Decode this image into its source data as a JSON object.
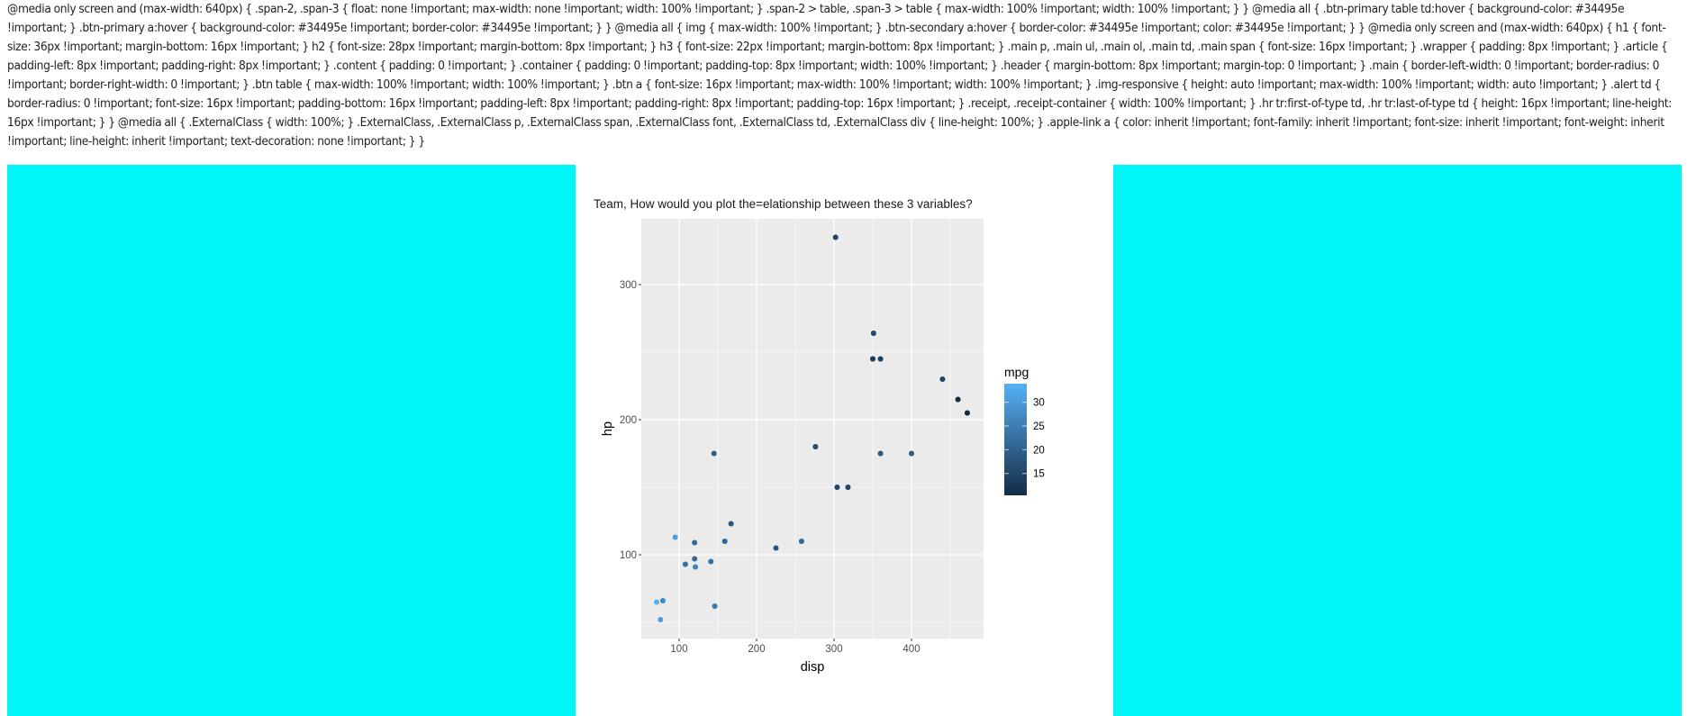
{
  "page": {
    "css_text": "@media only screen and (max-width: 640px) { .span-2, .span-3 { float: none !important; max-width: none !important; width: 100% !important; } .span-2 > table, .span-3 > table { max-width: 100% !important; width: 100% !important; } } @media all { .btn-primary table td:hover { background-color: #34495e !important; } .btn-primary a:hover { background-color: #34495e !important; border-color: #34495e !important; } } @media all { img { max-width: 100% !important; } .btn-secondary a:hover { border-color: #34495e !important; color: #34495e !important; } } @media only screen and (max-width: 640px) { h1 { font-size: 36px !important; margin-bottom: 16px !important; } h2 { font-size: 28px !important; margin-bottom: 8px !important; } h3 { font-size: 22px !important; margin-bottom: 8px !important; } .main p, .main ul, .main ol, .main td, .main span { font-size: 16px !important; } .wrapper { padding: 8px !important; } .article { padding-left: 8px !important; padding-right: 8px !important; } .content { padding: 0 !important; } .container { padding: 0 !important; padding-top: 8px !important; width: 100% !important; } .header { margin-bottom: 8px !important; margin-top: 0 !important; } .main { border-left-width: 0 !important; border-radius: 0 !important; border-right-width: 0 !important; } .btn table { max-width: 100% !important; width: 100% !important; } .btn a { font-size: 16px !important; max-width: 100% !important; width: 100% !important; } .img-responsive { height: auto !important; max-width: 100% !important; width: auto !important; } .alert td { border-radius: 0 !important; font-size: 16px !important; padding-bottom: 16px !important; padding-left: 8px !important; padding-right: 8px !important; padding-top: 16px !important; } .receipt, .receipt-container { width: 100% !important; } .hr tr:first-of-type td, .hr tr:last-of-type td { height: 16px !important; line-height: 16px !important; } } @media all { .ExternalClass { width: 100%; } .ExternalClass, .ExternalClass p, .ExternalClass span, .ExternalClass font, .ExternalClass td, .ExternalClass div { line-height: 100%; } .apple-link a { color: inherit !important; font-family: inherit !important; font-size: inherit !important; font-weight: inherit !important; line-height: inherit !important; text-decoration: none !important; } }",
    "colors": {
      "side_panel": "#00f7f7",
      "plot_bg": "#ebebeb",
      "grid": "#ffffff",
      "gradient_low": "#132b43",
      "gradient_high": "#56b1f7"
    }
  },
  "chart_data": {
    "type": "scatter",
    "title": "Team, How would you plot the=elationship between these 3 variables?",
    "xlabel": "disp",
    "ylabel": "hp",
    "color_label": "mpg",
    "xlim": [
      55,
      497
    ],
    "ylim": [
      38,
      352
    ],
    "x_ticks": [
      100,
      200,
      300,
      400
    ],
    "y_ticks": [
      100,
      200,
      300
    ],
    "color_ticks": [
      15,
      20,
      25,
      30
    ],
    "color_range": [
      10.4,
      33.9
    ],
    "grid": true,
    "legend_position": "right",
    "points": [
      {
        "disp": 95,
        "hp": 113,
        "mpg": 30.4
      },
      {
        "disp": 120,
        "hp": 109,
        "mpg": 21.4
      },
      {
        "disp": 159,
        "hp": 110,
        "mpg": 21.0
      },
      {
        "disp": 167,
        "hp": 123,
        "mpg": 18.5
      },
      {
        "disp": 225,
        "hp": 105,
        "mpg": 18.1
      },
      {
        "disp": 258,
        "hp": 110,
        "mpg": 21.4
      },
      {
        "disp": 120,
        "hp": 97,
        "mpg": 21.5
      },
      {
        "disp": 108,
        "hp": 93,
        "mpg": 22.8
      },
      {
        "disp": 121,
        "hp": 91,
        "mpg": 26.0
      },
      {
        "disp": 141,
        "hp": 95,
        "mpg": 22.8
      },
      {
        "disp": 71,
        "hp": 65,
        "mpg": 33.9
      },
      {
        "disp": 79,
        "hp": 66,
        "mpg": 27.3
      },
      {
        "disp": 146,
        "hp": 62,
        "mpg": 24.4
      },
      {
        "disp": 76,
        "hp": 52,
        "mpg": 30.4
      },
      {
        "disp": 145,
        "hp": 175,
        "mpg": 19.7
      },
      {
        "disp": 276,
        "hp": 180,
        "mpg": 16.4
      },
      {
        "disp": 304,
        "hp": 150,
        "mpg": 15.2
      },
      {
        "disp": 318,
        "hp": 150,
        "mpg": 15.5
      },
      {
        "disp": 360,
        "hp": 175,
        "mpg": 18.7
      },
      {
        "disp": 400,
        "hp": 175,
        "mpg": 19.2
      },
      {
        "disp": 302,
        "hp": 335,
        "mpg": 15.0
      },
      {
        "disp": 351,
        "hp": 264,
        "mpg": 15.8
      },
      {
        "disp": 350,
        "hp": 245,
        "mpg": 13.3
      },
      {
        "disp": 360,
        "hp": 245,
        "mpg": 14.3
      },
      {
        "disp": 440,
        "hp": 230,
        "mpg": 14.7
      },
      {
        "disp": 460,
        "hp": 215,
        "mpg": 10.4
      },
      {
        "disp": 472,
        "hp": 205,
        "mpg": 10.4
      }
    ]
  }
}
